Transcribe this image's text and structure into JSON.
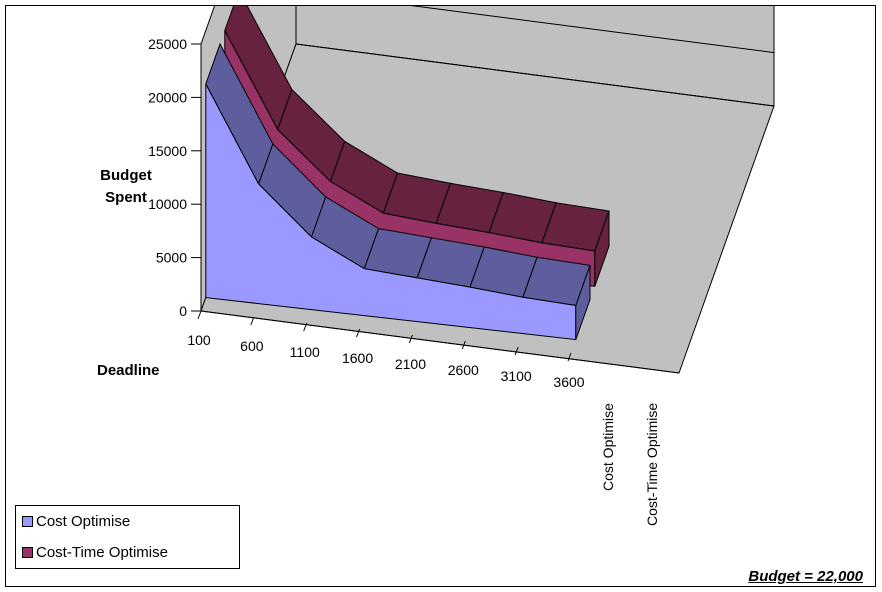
{
  "chart_data": {
    "type": "area",
    "render": "3d-ribbon",
    "x": [
      100,
      600,
      1100,
      1600,
      2100,
      2600,
      3100,
      3600
    ],
    "series": [
      {
        "name": "Cost Optimise",
        "color": "#9999ff",
        "dark": "#5e5e9e",
        "values": [
          20000,
          11200,
          6800,
          4400,
          4100,
          3800,
          3400,
          3200
        ]
      },
      {
        "name": "Cost-Time Optimise",
        "color": "#993366",
        "dark": "#66223f",
        "values": [
          20000,
          11300,
          7000,
          4600,
          4200,
          3900,
          3500,
          3300
        ]
      }
    ],
    "ylabel": "Budget Spent",
    "xlabel": "Deadline",
    "ylim": [
      0,
      25000
    ],
    "yticks": [
      0,
      5000,
      10000,
      15000,
      20000,
      25000
    ],
    "grid": true,
    "legend_position": "bottom-left"
  },
  "annotation": "Budget = 22,000",
  "colors": {
    "wall": "#c0c0c0",
    "floor": "#c0c0c0"
  }
}
